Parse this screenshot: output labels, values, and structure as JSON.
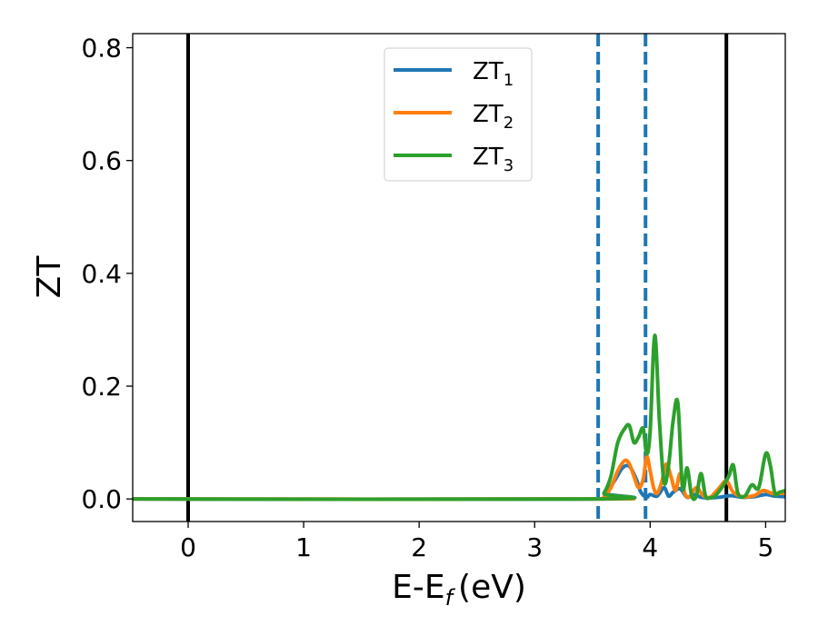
{
  "chart_data": {
    "type": "line",
    "xlabel": "E-E",
    "xlabel_sub": "f",
    "xlabel_unit": "(eV)",
    "ylabel": "ZT",
    "xlim": [
      -0.48,
      5.17
    ],
    "ylim": [
      -0.04,
      0.825
    ],
    "xticks": [
      0,
      1,
      2,
      3,
      4,
      5
    ],
    "yticks": [
      0.0,
      0.2,
      0.4,
      0.6,
      0.8
    ],
    "xtick_labels": [
      "0",
      "1",
      "2",
      "3",
      "4",
      "5"
    ],
    "ytick_labels": [
      "0.0",
      "0.2",
      "0.4",
      "0.6",
      "0.8"
    ],
    "grid": false,
    "legend_position": "top-center",
    "vlines_solid": [
      0.0,
      4.66
    ],
    "vlines_dashed": [
      3.55,
      3.96
    ],
    "vline_solid_color": "#000000",
    "vline_dashed_color": "#1f77b4",
    "series": [
      {
        "name": "ZT",
        "sub": "1",
        "color": "#1f77b4",
        "x": [
          -0.48,
          3.55,
          3.62,
          3.7,
          3.76,
          3.82,
          3.88,
          3.92,
          3.97,
          4.0,
          4.06,
          4.12,
          4.16,
          4.2,
          4.26,
          4.32,
          4.38,
          4.44,
          4.5,
          4.6,
          4.7,
          4.8,
          4.9,
          5.0,
          5.08,
          5.17
        ],
        "y": [
          0.0,
          0.0,
          0.01,
          0.035,
          0.055,
          0.058,
          0.035,
          0.012,
          0.003,
          0.008,
          0.005,
          0.02,
          0.005,
          0.012,
          0.018,
          0.003,
          0.008,
          0.003,
          0.002,
          0.003,
          0.006,
          0.003,
          0.004,
          0.008,
          0.005,
          0.004
        ]
      },
      {
        "name": "ZT",
        "sub": "2",
        "color": "#ff7f0e",
        "x": [
          -0.48,
          3.55,
          3.6,
          3.66,
          3.72,
          3.78,
          3.82,
          3.86,
          3.9,
          3.94,
          3.97,
          4.0,
          4.03,
          4.06,
          4.1,
          4.14,
          4.18,
          4.22,
          4.26,
          4.3,
          4.34,
          4.4,
          4.46,
          4.52,
          4.6,
          4.66,
          4.72,
          4.8,
          4.9,
          4.98,
          5.06,
          5.17
        ],
        "y": [
          0.0,
          0.0,
          0.004,
          0.02,
          0.05,
          0.068,
          0.062,
          0.04,
          0.02,
          0.035,
          0.075,
          0.05,
          0.02,
          0.01,
          0.03,
          0.062,
          0.04,
          0.015,
          0.045,
          0.01,
          0.004,
          0.02,
          0.006,
          0.003,
          0.02,
          0.032,
          0.012,
          0.004,
          0.006,
          0.015,
          0.01,
          0.01
        ]
      },
      {
        "name": "ZT",
        "sub": "3",
        "color": "#2ca02c",
        "x": [
          -0.48,
          3.55,
          3.6,
          3.66,
          3.72,
          3.78,
          3.82,
          3.86,
          3.9,
          3.94,
          3.97,
          4.0,
          4.04,
          4.08,
          4.12,
          4.16,
          4.2,
          4.24,
          4.28,
          4.32,
          4.36,
          4.4,
          4.44,
          4.48,
          4.52,
          4.56,
          4.62,
          4.68,
          4.72,
          4.76,
          4.82,
          4.88,
          4.94,
          5.0,
          5.04,
          5.08,
          5.12,
          5.17
        ],
        "y": [
          0.0,
          0.0,
          0.01,
          0.04,
          0.1,
          0.125,
          0.13,
          0.1,
          0.11,
          0.125,
          0.08,
          0.12,
          0.29,
          0.14,
          0.03,
          0.06,
          0.14,
          0.17,
          0.02,
          0.055,
          0.005,
          0.005,
          0.045,
          0.005,
          0.002,
          0.005,
          0.02,
          0.04,
          0.06,
          0.01,
          0.005,
          0.025,
          0.02,
          0.08,
          0.06,
          0.01,
          0.012,
          0.015
        ]
      }
    ]
  }
}
